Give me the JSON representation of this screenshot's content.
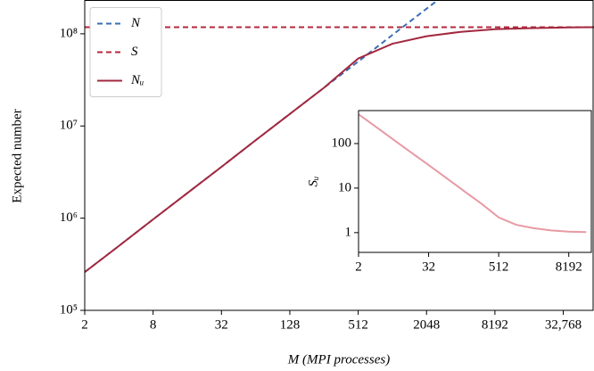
{
  "chart_data": [
    {
      "type": "line",
      "xlabel": "M (MPI processes)",
      "ylabel": "Expected number",
      "xscale": "log",
      "yscale": "log",
      "legend": "upper left",
      "xlim": [
        2,
        60000
      ],
      "ylim": [
        100000,
        230000000
      ],
      "xticks": [
        2,
        8,
        32,
        128,
        512,
        2048,
        8192,
        {
          "value": 32768,
          "label": "32,768"
        }
      ],
      "yticks": [
        {
          "value": 100000,
          "label": "10⁵"
        },
        {
          "value": 1000000,
          "label": "10⁶"
        },
        {
          "value": 10000000,
          "label": "10⁷"
        },
        {
          "value": 100000000,
          "label": "10⁸"
        }
      ],
      "series": [
        {
          "name": "N",
          "color": "#3a6db4",
          "linestyle": "dashed",
          "x": [
            2,
            4,
            8,
            16,
            32,
            64,
            128,
            256,
            512,
            1024,
            2048,
            4096
          ],
          "values": [
            260000,
            500000,
            970000,
            1870000,
            3600000,
            7000000,
            13500000,
            26000000,
            50000000,
            97000000,
            187000000,
            360000000
          ]
        },
        {
          "name": "S",
          "color": "#b5283f",
          "linestyle": "dashed",
          "x": [
            2,
            65536
          ],
          "values": [
            118000000,
            118000000
          ]
        },
        {
          "name": "Nᵤ",
          "color": "#a3283e",
          "linestyle": "solid",
          "x": [
            2,
            4,
            8,
            16,
            32,
            64,
            128,
            256,
            512,
            1024,
            2048,
            4096,
            8192,
            16384,
            32768,
            65536
          ],
          "values": [
            260000,
            500000,
            970000,
            1870000,
            3600000,
            7000000,
            13500000,
            26000000,
            54000000,
            78000000,
            94000000,
            105000000,
            112000000,
            115000000,
            117000000,
            118000000
          ]
        }
      ]
    },
    {
      "type": "line",
      "ylabel": "Sᵤ",
      "xscale": "log",
      "yscale": "log",
      "xlim": [
        2,
        20000
      ],
      "ylim": [
        0.36,
        550
      ],
      "xticks": [
        2,
        32,
        512,
        8192
      ],
      "yticks": [
        1,
        10,
        100
      ],
      "series": [
        {
          "color": "#e89aa3",
          "linestyle": "solid",
          "x": [
            2,
            4,
            8,
            16,
            32,
            64,
            128,
            256,
            512,
            1024,
            2048,
            4096,
            8192,
            16384
          ],
          "values": [
            454,
            236,
            122,
            63,
            33,
            17,
            8.7,
            4.5,
            2.2,
            1.5,
            1.26,
            1.12,
            1.05,
            1.03
          ]
        }
      ]
    }
  ]
}
